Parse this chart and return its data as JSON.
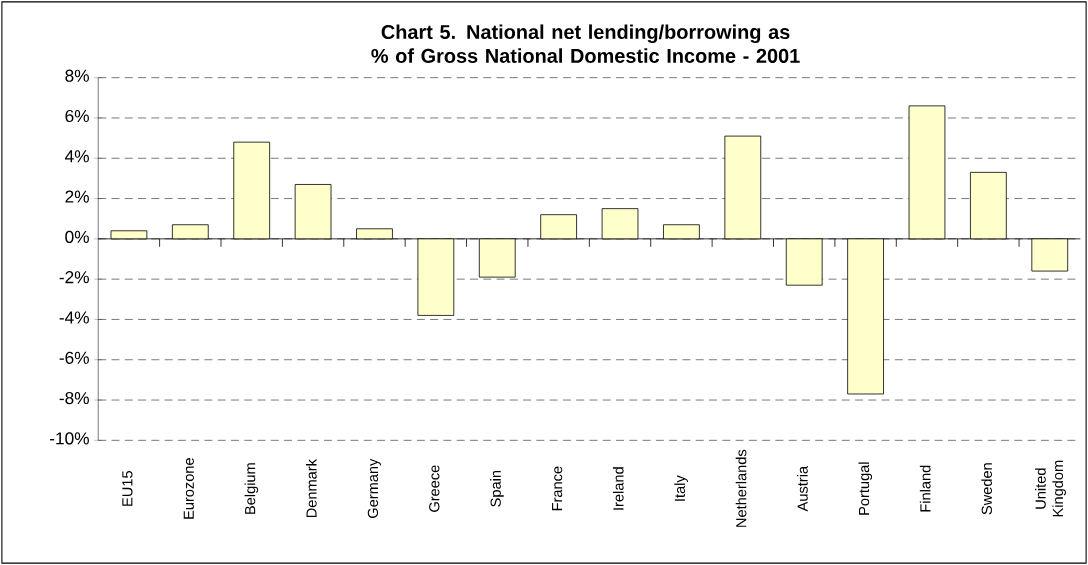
{
  "chart_data": {
    "type": "bar",
    "title": "Chart 5. National net lending/borrowing as % of Gross National Domestic Income - 2001",
    "categories": [
      "EU15",
      "Eurozone",
      "Belgium",
      "Denmark",
      "Germany",
      "Greece",
      "Spain",
      "France",
      "Ireland",
      "Italy",
      "Netherlands",
      "Austria",
      "Portugal",
      "Finland",
      "Sweden",
      "United Kingdom"
    ],
    "values": [
      0.4,
      0.7,
      4.8,
      2.7,
      0.5,
      -3.8,
      -1.9,
      1.2,
      1.5,
      0.7,
      5.1,
      -2.3,
      -7.7,
      6.6,
      3.3,
      -1.6
    ],
    "color": "#ffffcc",
    "ylim": [
      -10,
      8
    ],
    "yticks": [
      {
        "value": -10,
        "label": "-10%"
      },
      {
        "value": -8,
        "label": "-8%"
      },
      {
        "value": -6,
        "label": "-6%"
      },
      {
        "value": -4,
        "label": "-4%"
      },
      {
        "value": -2,
        "label": "-2%"
      },
      {
        "value": 0,
        "label": "0%"
      },
      {
        "value": 2,
        "label": "2%"
      },
      {
        "value": 4,
        "label": "4%"
      },
      {
        "value": 6,
        "label": "6%"
      },
      {
        "value": 8,
        "label": "8%"
      }
    ],
    "grid": "y"
  }
}
